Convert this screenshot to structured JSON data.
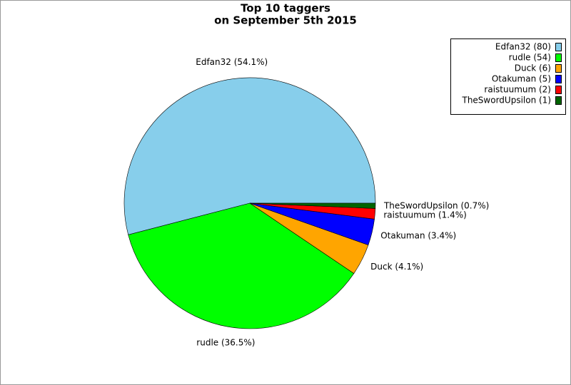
{
  "chart_data": {
    "type": "pie",
    "title": "Top 10 taggers",
    "subtitle": "on September 5th 2015",
    "categories": [
      "Edfan32 (80)",
      "rudle (54)",
      "Duck (6)",
      "Otakuman (5)",
      "raistuumum (2)",
      "TheSwordUpsilon (1)"
    ],
    "values": [
      80,
      54,
      6,
      5,
      2,
      1
    ],
    "value_labels": [
      "Edfan32 (54.1%)",
      "rudle (36.5%)",
      "Duck (4.1%)",
      "Otakuman (3.4%)",
      "raistuumum (1.4%)",
      "TheSwordUpsilon (0.7%)"
    ],
    "colors": [
      "#87ceeb",
      "#00ff00",
      "#ffa500",
      "#0000ff",
      "#ff0000",
      "#006400"
    ],
    "legend": "top-right"
  }
}
